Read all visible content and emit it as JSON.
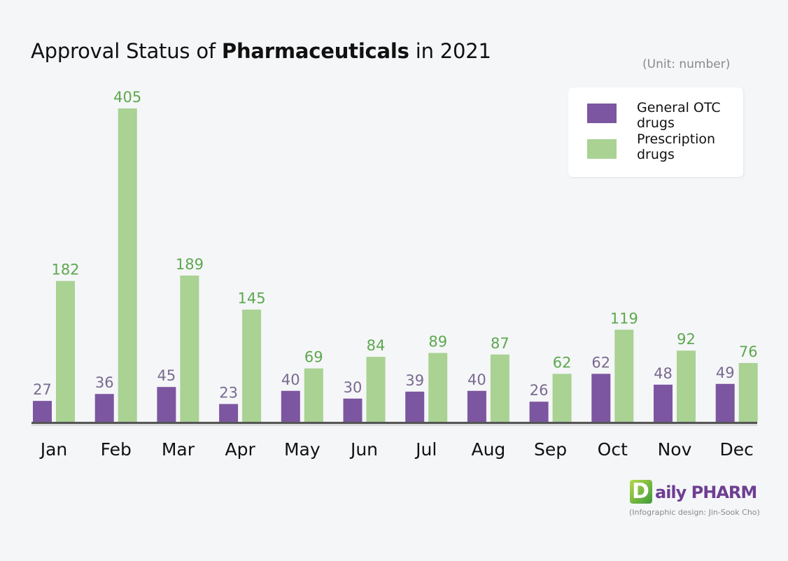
{
  "header": {
    "title_prefix": "Approval Status of ",
    "title_bold": "Pharmaceuticals",
    "title_suffix": " in 2021",
    "unit": "(Unit: number)"
  },
  "legend": {
    "otc_label": "General OTC drugs",
    "rx_label": "Prescription drugs"
  },
  "brand": {
    "mark": "D",
    "name": "aily PHARM",
    "credit": "(Infographic design: Jin-Sook Cho)"
  },
  "colors": {
    "otc": "#7c56a0",
    "rx": "#a9d293",
    "otc_label": "#7a6a8f",
    "rx_label": "#5da84e",
    "axis": "#555555"
  },
  "chart_data": {
    "type": "bar",
    "title": "Approval Status of Pharmaceuticals in 2021",
    "categories": [
      "Jan",
      "Feb",
      "Mar",
      "Apr",
      "May",
      "Jun",
      "Jul",
      "Aug",
      "Sep",
      "Oct",
      "Nov",
      "Dec"
    ],
    "series": [
      {
        "name": "General OTC drugs",
        "values": [
          27,
          36,
          45,
          23,
          40,
          30,
          39,
          40,
          26,
          62,
          48,
          49
        ]
      },
      {
        "name": "Prescription drugs",
        "values": [
          182,
          405,
          189,
          145,
          69,
          84,
          89,
          87,
          62,
          119,
          92,
          76
        ]
      }
    ],
    "ylim": [
      0,
      405
    ],
    "grid": false,
    "legend_position": "top-right"
  }
}
